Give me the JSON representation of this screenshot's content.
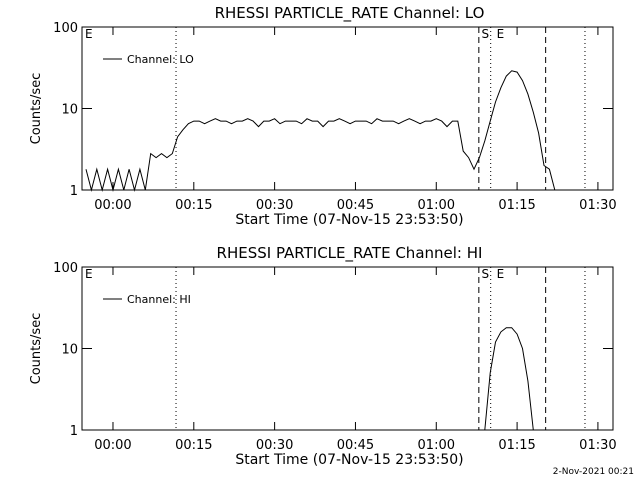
{
  "chart_data": [
    {
      "type": "line",
      "title": "RHESSI PARTICLE_RATE Channel: LO",
      "xlabel": "Start Time (07-Nov-15 23:53:50)",
      "ylabel": "Counts/sec",
      "x": [
        -5,
        -4,
        -3,
        -2,
        -1,
        0,
        1,
        2,
        3,
        4,
        5,
        6,
        7,
        8,
        9,
        10,
        11,
        12,
        13,
        14,
        15,
        16,
        17,
        18,
        19,
        20,
        21,
        22,
        23,
        24,
        25,
        26,
        27,
        28,
        29,
        30,
        31,
        32,
        33,
        34,
        35,
        36,
        37,
        38,
        39,
        40,
        41,
        42,
        43,
        44,
        45,
        46,
        47,
        48,
        49,
        50,
        51,
        52,
        53,
        54,
        55,
        56,
        57,
        58,
        59,
        60,
        61,
        62,
        63,
        64,
        65,
        66,
        67,
        68,
        69,
        70,
        71,
        72,
        73,
        74,
        75,
        76,
        77,
        78,
        79,
        80,
        81,
        82
      ],
      "series": [
        {
          "name": "Channel: LO",
          "color": "#000000",
          "values": [
            1.8,
            1,
            1.8,
            1,
            1.8,
            1,
            1.8,
            1,
            1.8,
            1,
            1.8,
            1,
            2.8,
            2.5,
            2.8,
            2.5,
            2.8,
            4.5,
            5.5,
            6.5,
            7,
            7,
            6.5,
            7,
            7.5,
            7,
            7,
            6.5,
            7,
            7,
            7.5,
            7,
            6,
            7,
            7,
            7.5,
            6.5,
            7,
            7,
            7,
            6.5,
            7.5,
            7,
            7,
            6,
            7,
            7,
            7.5,
            7,
            6.5,
            7,
            7,
            7,
            6.5,
            7.5,
            7,
            7,
            7,
            6.5,
            7,
            7.5,
            7,
            6.5,
            7,
            7,
            7.5,
            7,
            6,
            7,
            7,
            3,
            2.5,
            1.8,
            2.5,
            4,
            7,
            12,
            18,
            25,
            29,
            28,
            22,
            15,
            9,
            5,
            2,
            1.8,
            1
          ]
        }
      ],
      "xlim": [
        -5.75,
        92.8
      ],
      "xticks": [
        {
          "value": 0,
          "label": "00:00"
        },
        {
          "value": 15,
          "label": "00:15"
        },
        {
          "value": 30,
          "label": "00:30"
        },
        {
          "value": 45,
          "label": "00:45"
        },
        {
          "value": 60,
          "label": "01:00"
        },
        {
          "value": 75,
          "label": "01:15"
        },
        {
          "value": 90,
          "label": "01:30"
        }
      ],
      "ylim": [
        1,
        100
      ],
      "yticks": [
        1,
        10,
        100
      ],
      "log_y": true,
      "legend": "upper left",
      "vlines": [
        {
          "x": 11.7,
          "style": "dotted"
        },
        {
          "x": 67.9,
          "style": "dashed"
        },
        {
          "x": 70.1,
          "style": "dotted"
        },
        {
          "x": 80.3,
          "style": "dashed"
        },
        {
          "x": 87.6,
          "style": "dotted"
        }
      ],
      "annotations": [
        {
          "text": "E",
          "x": -5.2,
          "y": 100
        },
        {
          "text": "S",
          "x": 68.4,
          "y": 100
        },
        {
          "text": "E",
          "x": 71.2,
          "y": 100
        }
      ]
    },
    {
      "type": "line",
      "title": "RHESSI PARTICLE_RATE Channel: HI",
      "xlabel": "Start Time (07-Nov-15 23:53:50)",
      "ylabel": "Counts/sec",
      "x": [
        69,
        70,
        71,
        72,
        73,
        74,
        75,
        76,
        77,
        78
      ],
      "series": [
        {
          "name": "Channel: HI",
          "color": "#000000",
          "values": [
            1,
            5,
            12,
            16,
            18,
            18,
            15,
            10,
            4,
            1
          ]
        }
      ],
      "xlim": [
        -5.75,
        92.8
      ],
      "xticks": [
        {
          "value": 0,
          "label": "00:00"
        },
        {
          "value": 15,
          "label": "00:15"
        },
        {
          "value": 30,
          "label": "00:30"
        },
        {
          "value": 45,
          "label": "00:45"
        },
        {
          "value": 60,
          "label": "01:00"
        },
        {
          "value": 75,
          "label": "01:15"
        },
        {
          "value": 90,
          "label": "01:30"
        }
      ],
      "ylim": [
        1,
        100
      ],
      "yticks": [
        1,
        10,
        100
      ],
      "log_y": true,
      "legend": "upper left",
      "vlines": [
        {
          "x": 11.7,
          "style": "dotted"
        },
        {
          "x": 67.9,
          "style": "dashed"
        },
        {
          "x": 70.1,
          "style": "dotted"
        },
        {
          "x": 80.3,
          "style": "dashed"
        },
        {
          "x": 87.6,
          "style": "dotted"
        }
      ],
      "annotations": [
        {
          "text": "E",
          "x": -5.2,
          "y": 100
        },
        {
          "text": "S",
          "x": 68.4,
          "y": 100
        },
        {
          "text": "E",
          "x": 71.2,
          "y": 100
        }
      ]
    }
  ],
  "footer": "2-Nov-2021 00:21"
}
